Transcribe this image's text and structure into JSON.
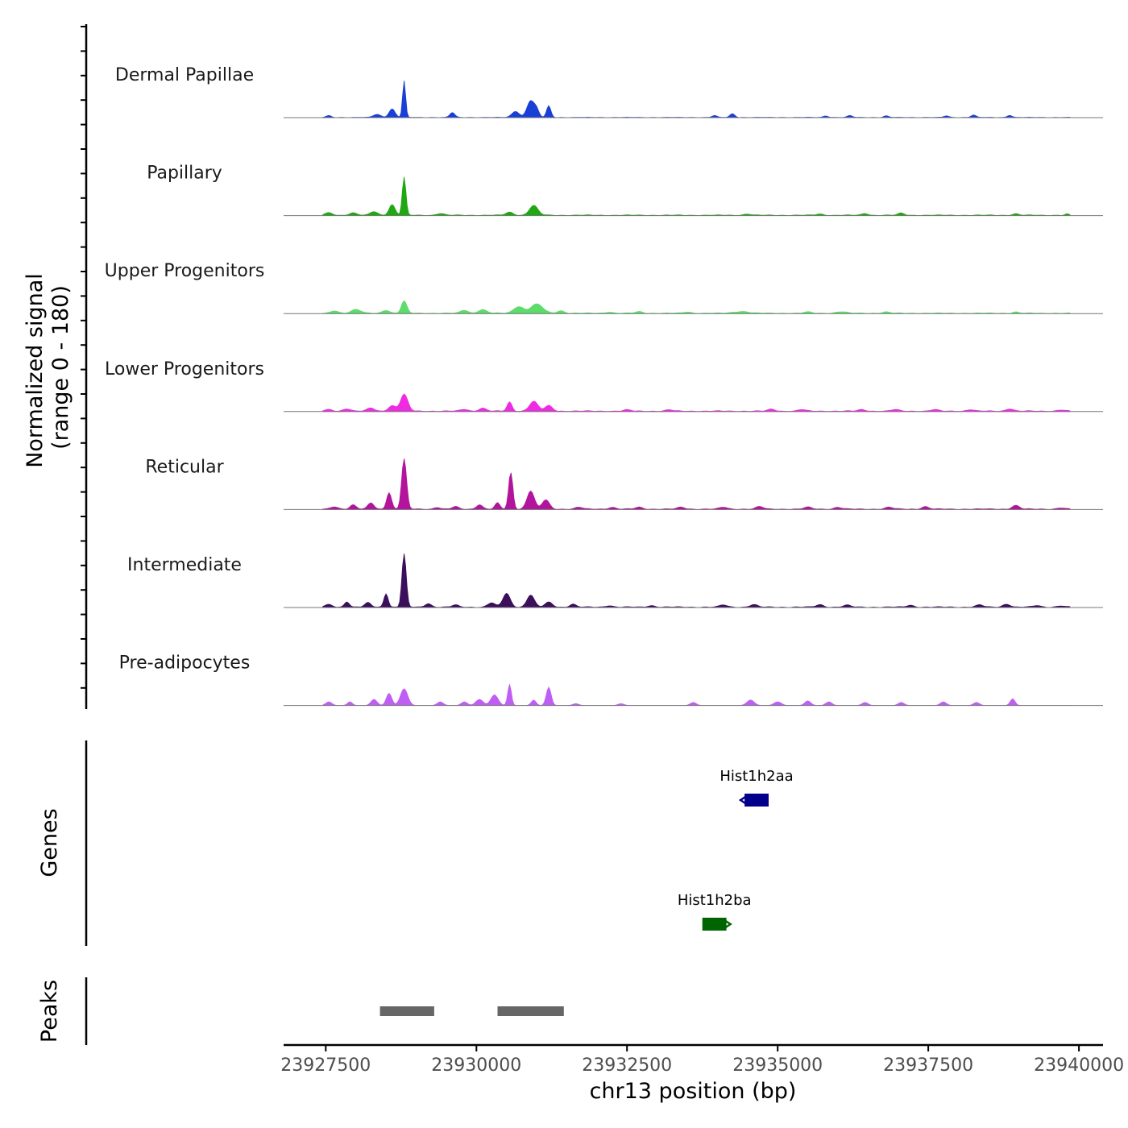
{
  "chart_data": {
    "type": "area",
    "ylabel": "Normalized signal",
    "yrange_label": "(range 0 - 180)",
    "xlabel": "chr13 position (bp)",
    "xlim": [
      23926800,
      23940400
    ],
    "x_ticks": [
      23927500,
      23930000,
      23932500,
      23935000,
      23937500,
      23940000
    ],
    "x_tick_labels": [
      "23927500",
      "23930000",
      "23932500",
      "23935000",
      "23937500",
      "23940000"
    ],
    "ylim": [
      0,
      180
    ],
    "signal_extent": [
      23927450,
      23939850
    ],
    "tracks": [
      {
        "name": "Dermal Papillae",
        "color": "#1a3fd6",
        "peaks": [
          [
            23928800,
            120,
            25
          ],
          [
            23928600,
            28,
            50
          ],
          [
            23928350,
            10,
            60
          ],
          [
            23929600,
            16,
            40
          ],
          [
            23930900,
            55,
            60
          ],
          [
            23930650,
            20,
            60
          ],
          [
            23931200,
            38,
            35
          ],
          [
            23931000,
            22,
            40
          ],
          [
            23934250,
            12,
            40
          ],
          [
            23933950,
            6,
            40
          ],
          [
            23936200,
            6,
            40
          ],
          [
            23938250,
            8,
            40
          ],
          [
            23938850,
            7,
            40
          ],
          [
            23936800,
            5,
            40
          ],
          [
            23935800,
            5,
            40
          ],
          [
            23937800,
            5,
            40
          ],
          [
            23927550,
            6,
            40
          ]
        ],
        "baseline": 1.5
      },
      {
        "name": "Papillary",
        "color": "#1fa812",
        "peaks": [
          [
            23928800,
            125,
            30
          ],
          [
            23928600,
            35,
            50
          ],
          [
            23928300,
            12,
            60
          ],
          [
            23927950,
            8,
            60
          ],
          [
            23927550,
            8,
            60
          ],
          [
            23930950,
            32,
            70
          ],
          [
            23930550,
            10,
            60
          ],
          [
            23929400,
            6,
            60
          ],
          [
            23936450,
            6,
            50
          ],
          [
            23937050,
            7,
            50
          ],
          [
            23938950,
            5,
            50
          ],
          [
            23934500,
            4,
            60
          ],
          [
            23935700,
            4,
            60
          ],
          [
            23939800,
            4,
            30
          ]
        ],
        "baseline": 2.5
      },
      {
        "name": "Upper Progenitors",
        "color": "#5cdc6a",
        "peaks": [
          [
            23928800,
            40,
            45
          ],
          [
            23928500,
            10,
            60
          ],
          [
            23928000,
            12,
            80
          ],
          [
            23927650,
            8,
            60
          ],
          [
            23931000,
            30,
            100
          ],
          [
            23930700,
            22,
            80
          ],
          [
            23930100,
            12,
            70
          ],
          [
            23929800,
            10,
            60
          ],
          [
            23931400,
            8,
            60
          ],
          [
            23932700,
            5,
            60
          ],
          [
            23934400,
            6,
            120
          ],
          [
            23936050,
            5,
            80
          ],
          [
            23935500,
            4,
            60
          ],
          [
            23938950,
            4,
            50
          ],
          [
            23932200,
            4,
            60
          ],
          [
            23933500,
            4,
            60
          ],
          [
            23936800,
            4,
            60
          ]
        ],
        "baseline": 2.5
      },
      {
        "name": "Lower Progenitors",
        "color": "#ee2be2",
        "peaks": [
          [
            23928800,
            55,
            60
          ],
          [
            23928600,
            18,
            60
          ],
          [
            23928250,
            10,
            60
          ],
          [
            23927850,
            8,
            60
          ],
          [
            23927550,
            5,
            60
          ],
          [
            23930550,
            30,
            40
          ],
          [
            23930950,
            32,
            70
          ],
          [
            23931200,
            18,
            60
          ],
          [
            23930100,
            10,
            60
          ],
          [
            23929800,
            6,
            60
          ],
          [
            23934900,
            6,
            60
          ],
          [
            23935400,
            5,
            60
          ],
          [
            23936400,
            5,
            60
          ],
          [
            23938850,
            8,
            60
          ],
          [
            23936950,
            5,
            60
          ],
          [
            23937600,
            5,
            60
          ],
          [
            23938200,
            5,
            60
          ],
          [
            23933200,
            4,
            60
          ],
          [
            23932500,
            4,
            60
          ],
          [
            23939700,
            4,
            60
          ]
        ],
        "baseline": 3
      },
      {
        "name": "Reticular",
        "color": "#b2149c",
        "peaks": [
          [
            23928800,
            165,
            40
          ],
          [
            23928550,
            55,
            40
          ],
          [
            23928250,
            20,
            50
          ],
          [
            23927950,
            14,
            50
          ],
          [
            23927650,
            8,
            60
          ],
          [
            23930570,
            120,
            35
          ],
          [
            23930350,
            20,
            40
          ],
          [
            23930900,
            60,
            60
          ],
          [
            23931150,
            30,
            60
          ],
          [
            23930050,
            15,
            50
          ],
          [
            23929650,
            8,
            50
          ],
          [
            23929350,
            6,
            50
          ],
          [
            23931700,
            6,
            60
          ],
          [
            23932250,
            6,
            60
          ],
          [
            23932700,
            6,
            60
          ],
          [
            23933400,
            6,
            60
          ],
          [
            23934700,
            8,
            60
          ],
          [
            23934100,
            6,
            60
          ],
          [
            23935500,
            6,
            60
          ],
          [
            23936000,
            6,
            60
          ],
          [
            23936850,
            6,
            60
          ],
          [
            23937450,
            8,
            60
          ],
          [
            23938950,
            12,
            60
          ],
          [
            23939700,
            4,
            60
          ]
        ],
        "baseline": 3
      },
      {
        "name": "Intermediate",
        "color": "#3b0f5c",
        "peaks": [
          [
            23928800,
            175,
            35
          ],
          [
            23928500,
            45,
            35
          ],
          [
            23928200,
            14,
            50
          ],
          [
            23927850,
            18,
            40
          ],
          [
            23927550,
            8,
            60
          ],
          [
            23929200,
            12,
            50
          ],
          [
            23929650,
            7,
            50
          ],
          [
            23930500,
            45,
            60
          ],
          [
            23930250,
            14,
            60
          ],
          [
            23930900,
            40,
            60
          ],
          [
            23931200,
            16,
            60
          ],
          [
            23931600,
            10,
            50
          ],
          [
            23934100,
            7,
            60
          ],
          [
            23934600,
            8,
            60
          ],
          [
            23935700,
            8,
            60
          ],
          [
            23936150,
            6,
            60
          ],
          [
            23937200,
            6,
            60
          ],
          [
            23938350,
            7,
            60
          ],
          [
            23938800,
            10,
            60
          ],
          [
            23939300,
            5,
            60
          ],
          [
            23939700,
            4,
            60
          ],
          [
            23932200,
            5,
            60
          ],
          [
            23932900,
            5,
            60
          ]
        ],
        "baseline": 3
      },
      {
        "name": "Pre-adipocytes",
        "color": "#bf5ef2",
        "peaks": [
          [
            23928800,
            55,
            60
          ],
          [
            23928550,
            40,
            45
          ],
          [
            23928300,
            20,
            50
          ],
          [
            23927900,
            12,
            40
          ],
          [
            23927550,
            12,
            50
          ],
          [
            23930550,
            70,
            30
          ],
          [
            23930300,
            35,
            60
          ],
          [
            23930050,
            20,
            60
          ],
          [
            23929800,
            12,
            50
          ],
          [
            23929400,
            12,
            50
          ],
          [
            23931200,
            60,
            40
          ],
          [
            23930950,
            18,
            40
          ],
          [
            23934550,
            18,
            60
          ],
          [
            23935000,
            12,
            60
          ],
          [
            23935500,
            15,
            50
          ],
          [
            23935850,
            12,
            50
          ],
          [
            23936450,
            10,
            50
          ],
          [
            23937050,
            10,
            50
          ],
          [
            23937750,
            12,
            50
          ],
          [
            23938300,
            10,
            50
          ],
          [
            23938900,
            22,
            40
          ],
          [
            23933600,
            10,
            50
          ],
          [
            23932400,
            6,
            50
          ],
          [
            23931650,
            6,
            50
          ]
        ],
        "baseline": 0
      }
    ],
    "genes_label": "Genes",
    "genes": [
      {
        "name": "Hist1h2aa",
        "start": 23934450,
        "end": 23934850,
        "strand": "-",
        "color": "#00008b"
      },
      {
        "name": "Hist1h2ba",
        "start": 23933750,
        "end": 23934150,
        "strand": "+",
        "color": "#006400"
      }
    ],
    "peaks_label": "Peaks",
    "peak_regions": [
      {
        "start": 23928400,
        "end": 23929300
      },
      {
        "start": 23930350,
        "end": 23931450
      }
    ],
    "peak_color": "#666666"
  }
}
